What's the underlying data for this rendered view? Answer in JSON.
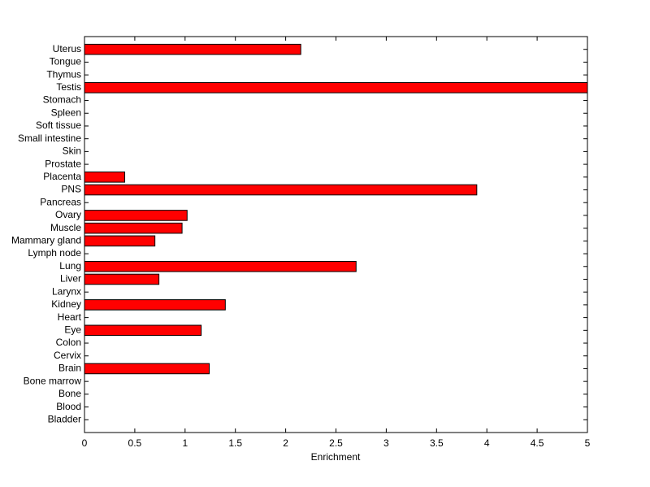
{
  "chart_data": {
    "type": "barh",
    "xlabel": "Enrichment",
    "categories": [
      "Uterus",
      "Tongue",
      "Thymus",
      "Testis",
      "Stomach",
      "Spleen",
      "Soft tissue",
      "Small intestine",
      "Skin",
      "Prostate",
      "Placenta",
      "PNS",
      "Pancreas",
      "Ovary",
      "Muscle",
      "Mammary gland",
      "Lymph node",
      "Lung",
      "Liver",
      "Larynx",
      "Kidney",
      "Heart",
      "Eye",
      "Colon",
      "Cervix",
      "Brain",
      "Bone marrow",
      "Bone",
      "Blood",
      "Bladder"
    ],
    "values": [
      2.15,
      0,
      0,
      5,
      0,
      0,
      0,
      0,
      0,
      0,
      0.4,
      3.9,
      0,
      1.02,
      0.97,
      0.7,
      0,
      2.7,
      0.74,
      0,
      1.4,
      0,
      1.16,
      0,
      0,
      1.24,
      0,
      0,
      0,
      0
    ],
    "color": "#ff0000",
    "xlim": [
      0,
      5
    ],
    "xticks": [
      0,
      0.5,
      1,
      1.5,
      2,
      2.5,
      3,
      3.5,
      4,
      4.5,
      5
    ]
  }
}
